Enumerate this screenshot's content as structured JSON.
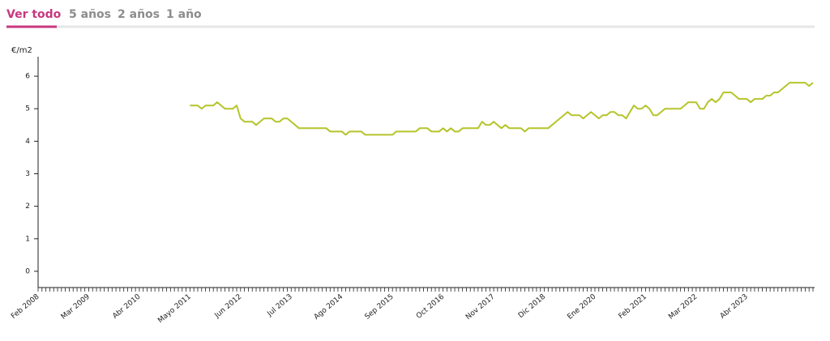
{
  "tabs": [
    "Ver todo",
    "5 años",
    "2 años",
    "1 año"
  ],
  "chart_data": {
    "type": "line",
    "y_label": "€/m2",
    "color": "#b5c42a",
    "categories": [
      "Feb 2008",
      null,
      null,
      null,
      null,
      null,
      null,
      null,
      null,
      null,
      null,
      null,
      null,
      "Mar 2009",
      null,
      null,
      null,
      null,
      null,
      null,
      null,
      null,
      null,
      null,
      null,
      null,
      "Abr 2010",
      null,
      null,
      null,
      null,
      null,
      null,
      null,
      null,
      null,
      null,
      null,
      null,
      "Mayo 2011",
      null,
      null,
      null,
      null,
      null,
      null,
      null,
      null,
      null,
      null,
      null,
      null,
      "Jun 2012",
      null,
      null,
      null,
      null,
      null,
      null,
      null,
      null,
      null,
      null,
      null,
      null,
      "Jul 2013",
      null,
      null,
      null,
      null,
      null,
      null,
      null,
      null,
      null,
      null,
      null,
      null,
      "Ago 2014",
      null,
      null,
      null,
      null,
      null,
      null,
      null,
      null,
      null,
      null,
      null,
      null,
      "Sep 2015",
      null,
      null,
      null,
      null,
      null,
      null,
      null,
      null,
      null,
      null,
      null,
      null,
      "Oct 2016",
      null,
      null,
      null,
      null,
      null,
      null,
      null,
      null,
      null,
      null,
      null,
      null,
      "Nov 2017",
      null,
      null,
      null,
      null,
      null,
      null,
      null,
      null,
      null,
      null,
      null,
      null,
      "Dic 2018",
      null,
      null,
      null,
      null,
      null,
      null,
      null,
      null,
      null,
      null,
      null,
      null,
      "Ene 2020",
      null,
      null,
      null,
      null,
      null,
      null,
      null,
      null,
      null,
      null,
      null,
      null,
      "Feb 2021",
      null,
      null,
      null,
      null,
      null,
      null,
      null,
      null,
      null,
      null,
      null,
      null,
      "Mar 2022",
      null,
      null,
      null,
      null,
      null,
      null,
      null,
      null,
      null,
      null,
      null,
      null,
      "Abr 2023",
      null,
      null,
      null,
      null,
      null,
      null,
      null,
      null,
      null,
      null,
      null,
      null,
      null,
      null,
      null,
      null,
      null
    ],
    "values": [
      null,
      null,
      null,
      null,
      null,
      null,
      null,
      null,
      null,
      null,
      null,
      null,
      null,
      null,
      null,
      null,
      null,
      null,
      null,
      null,
      null,
      null,
      null,
      null,
      null,
      null,
      null,
      null,
      null,
      null,
      null,
      null,
      null,
      null,
      null,
      null,
      null,
      null,
      null,
      5.1,
      5.1,
      5.1,
      5.0,
      5.1,
      5.1,
      5.1,
      5.2,
      5.1,
      5.0,
      5.0,
      5.0,
      5.1,
      4.7,
      4.6,
      4.6,
      4.6,
      4.5,
      4.6,
      4.7,
      4.7,
      4.7,
      4.6,
      4.6,
      4.7,
      4.7,
      4.6,
      4.5,
      4.4,
      4.4,
      4.4,
      4.4,
      4.4,
      4.4,
      4.4,
      4.4,
      4.3,
      4.3,
      4.3,
      4.3,
      4.2,
      4.3,
      4.3,
      4.3,
      4.3,
      4.2,
      4.2,
      4.2,
      4.2,
      4.2,
      4.2,
      4.2,
      4.2,
      4.3,
      4.3,
      4.3,
      4.3,
      4.3,
      4.3,
      4.4,
      4.4,
      4.4,
      4.3,
      4.3,
      4.3,
      4.4,
      4.3,
      4.4,
      4.3,
      4.3,
      4.4,
      4.4,
      4.4,
      4.4,
      4.4,
      4.6,
      4.5,
      4.5,
      4.6,
      4.5,
      4.4,
      4.5,
      4.4,
      4.4,
      4.4,
      4.4,
      4.3,
      4.4,
      4.4,
      4.4,
      4.4,
      4.4,
      4.4,
      4.5,
      4.6,
      4.7,
      4.8,
      4.9,
      4.8,
      4.8,
      4.8,
      4.7,
      4.8,
      4.9,
      4.8,
      4.7,
      4.8,
      4.8,
      4.9,
      4.9,
      4.8,
      4.8,
      4.7,
      4.9,
      5.1,
      5.0,
      5.0,
      5.1,
      5.0,
      4.8,
      4.8,
      4.9,
      5.0,
      5.0,
      5.0,
      5.0,
      5.0,
      5.1,
      5.2,
      5.2,
      5.2,
      5.0,
      5.0,
      5.2,
      5.3,
      5.2,
      5.3,
      5.5,
      5.5,
      5.5,
      5.4,
      5.3,
      5.3,
      5.3,
      5.2,
      5.3,
      5.3,
      5.3,
      5.4,
      5.4,
      5.5,
      5.5,
      5.6,
      5.7,
      5.8,
      5.8,
      5.8,
      5.8,
      5.8,
      5.7,
      5.8
    ],
    "ylim": [
      -0.5,
      6.6
    ],
    "yticks": [
      0,
      1,
      2,
      3,
      4,
      5,
      6
    ],
    "grid": false
  }
}
